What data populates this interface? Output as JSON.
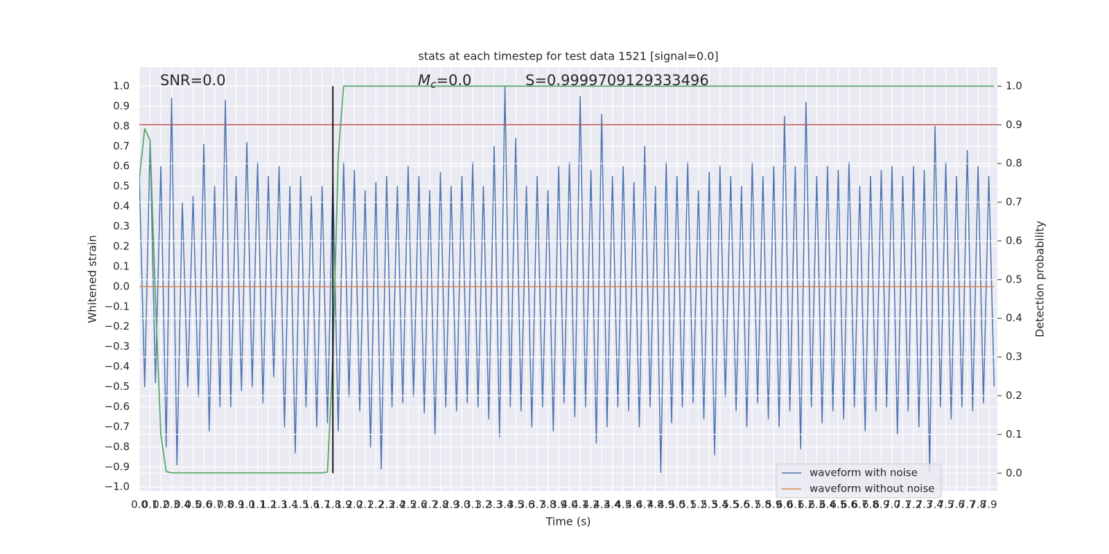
{
  "chart_data": {
    "type": "line",
    "title": "stats at each timestep for test data 1521 [signal=0.0]",
    "xlabel": "Time (s)",
    "ylabel": "Whitened strain",
    "y2label": "Detection probability",
    "annotations": {
      "snr": "SNR=0.0",
      "mc": {
        "symbol": "M",
        "subscript": "c",
        "text": "=0.0"
      },
      "s": "S=0.9999709129333496"
    },
    "grid": true,
    "legend": "lower right",
    "xlim": [
      0,
      7.98
    ],
    "ylim": [
      -1.02,
      1.095
    ],
    "y2lim": [
      -0.046,
      1.049
    ],
    "xticks": [
      {
        "value": 0,
        "label": "0.0"
      },
      0.1,
      0.2,
      0.3,
      0.4,
      0.5,
      0.6,
      0.7,
      0.8,
      0.9,
      {
        "value": 1,
        "label": "1.0"
      },
      1.1,
      1.2,
      1.3,
      1.4,
      1.5,
      1.6,
      1.7,
      1.8,
      1.9,
      {
        "value": 2,
        "label": "2.0"
      },
      2.1,
      2.2,
      2.3,
      2.4,
      2.5,
      2.6,
      2.7,
      2.8,
      2.9,
      {
        "value": 3,
        "label": "3.0"
      },
      3.1,
      3.2,
      3.3,
      3.4,
      3.5,
      3.6,
      3.7,
      3.8,
      3.9,
      {
        "value": 4,
        "label": "4.0"
      },
      4.1,
      4.2,
      4.3,
      4.4,
      4.5,
      4.6,
      4.7,
      4.8,
      4.9,
      {
        "value": 5,
        "label": "5.0"
      },
      5.1,
      5.2,
      5.3,
      5.4,
      5.5,
      5.6,
      5.7,
      5.8,
      5.9,
      {
        "value": 6,
        "label": "6.0"
      },
      6.1,
      6.2,
      6.3,
      6.4,
      6.5,
      6.6,
      6.7,
      6.8,
      6.9,
      {
        "value": 7,
        "label": "7.0"
      },
      7.1,
      7.2,
      7.3,
      7.4,
      7.5,
      7.6,
      7.7,
      7.8,
      7.9
    ],
    "yticks": [
      {
        "value": -1,
        "label": "−1.0"
      },
      {
        "value": -0.9,
        "label": "−0.9"
      },
      {
        "value": -0.8,
        "label": "−0.8"
      },
      {
        "value": -0.7,
        "label": "−0.7"
      },
      {
        "value": -0.6,
        "label": "−0.6"
      },
      {
        "value": -0.5,
        "label": "−0.5"
      },
      {
        "value": -0.4,
        "label": "−0.4"
      },
      {
        "value": -0.3,
        "label": "−0.3"
      },
      {
        "value": -0.2,
        "label": "−0.2"
      },
      {
        "value": -0.1,
        "label": "−0.1"
      },
      {
        "value": 0,
        "label": "0.0"
      },
      0.1,
      0.2,
      0.3,
      0.4,
      0.5,
      0.6,
      0.7,
      0.8,
      0.9,
      {
        "value": 1,
        "label": "1.0"
      }
    ],
    "y2ticks": [
      {
        "value": 0,
        "label": "0.0"
      },
      0.1,
      0.2,
      0.3,
      0.4,
      0.5,
      0.6,
      0.7,
      0.8,
      0.9,
      {
        "value": 1,
        "label": "1.0"
      }
    ],
    "series": [
      {
        "name": "waveform with noise",
        "color": "#4c72b0",
        "x": [
          0,
          0.05,
          0.1,
          0.15,
          0.2,
          0.25,
          0.3,
          0.35,
          0.4,
          0.45,
          0.5,
          0.55,
          0.6,
          0.65,
          0.7,
          0.75,
          0.8,
          0.85,
          0.9,
          0.95,
          1,
          1.05,
          1.1,
          1.15,
          1.2,
          1.25,
          1.3,
          1.35,
          1.4,
          1.45,
          1.5,
          1.55,
          1.6,
          1.65,
          1.7,
          1.75,
          1.8,
          1.85,
          1.9,
          1.95,
          2,
          2.05,
          2.1,
          2.15,
          2.2,
          2.25,
          2.3,
          2.35,
          2.4,
          2.45,
          2.5,
          2.55,
          2.6,
          2.65,
          2.7,
          2.75,
          2.8,
          2.85,
          2.9,
          2.95,
          3,
          3.05,
          3.1,
          3.15,
          3.2,
          3.25,
          3.3,
          3.35,
          3.4,
          3.45,
          3.5,
          3.55,
          3.6,
          3.65,
          3.7,
          3.75,
          3.8,
          3.85,
          3.9,
          3.95,
          4,
          4.05,
          4.1,
          4.15,
          4.2,
          4.25,
          4.3,
          4.35,
          4.4,
          4.45,
          4.5,
          4.55,
          4.6,
          4.65,
          4.7,
          4.75,
          4.8,
          4.85,
          4.9,
          4.95,
          5,
          5.05,
          5.1,
          5.15,
          5.2,
          5.25,
          5.3,
          5.35,
          5.4,
          5.45,
          5.5,
          5.55,
          5.6,
          5.65,
          5.7,
          5.75,
          5.8,
          5.85,
          5.9,
          5.95,
          6,
          6.05,
          6.1,
          6.15,
          6.2,
          6.25,
          6.3,
          6.35,
          6.4,
          6.45,
          6.5,
          6.55,
          6.6,
          6.65,
          6.7,
          6.75,
          6.8,
          6.85,
          6.9,
          6.95,
          7,
          7.05,
          7.1,
          7.15,
          7.2,
          7.25,
          7.3,
          7.35,
          7.4,
          7.45,
          7.5,
          7.55,
          7.6,
          7.65,
          7.7,
          7.75,
          7.8,
          7.85,
          7.9,
          7.95
        ],
        "values": [
          0.55,
          -0.5,
          0.72,
          -0.48,
          0.6,
          -0.8,
          0.94,
          -0.89,
          0.42,
          -0.5,
          0.45,
          -0.55,
          0.71,
          -0.72,
          0.5,
          -0.6,
          0.93,
          -0.6,
          0.55,
          -0.52,
          0.72,
          -0.5,
          0.62,
          -0.58,
          0.55,
          -0.45,
          0.6,
          -0.7,
          0.5,
          -0.83,
          0.55,
          -0.6,
          0.45,
          -0.7,
          0.5,
          -0.68,
          0.54,
          -0.72,
          0.62,
          -0.55,
          0.58,
          -0.62,
          0.48,
          -0.8,
          0.52,
          -0.91,
          0.55,
          -0.6,
          0.5,
          -0.58,
          0.6,
          -0.55,
          0.55,
          -0.63,
          0.48,
          -0.74,
          0.57,
          -0.6,
          0.5,
          -0.62,
          0.55,
          -0.58,
          0.62,
          -0.6,
          0.5,
          -0.66,
          0.7,
          -0.75,
          1.0,
          -0.6,
          0.74,
          -0.62,
          0.5,
          -0.7,
          0.55,
          -0.6,
          0.48,
          -0.72,
          0.6,
          -0.58,
          0.62,
          -0.65,
          0.95,
          -0.6,
          0.58,
          -0.78,
          0.86,
          -0.7,
          0.55,
          -0.6,
          0.6,
          -0.62,
          0.52,
          -0.7,
          0.7,
          -0.6,
          0.5,
          -0.93,
          0.62,
          -0.68,
          0.55,
          -0.6,
          0.62,
          -0.58,
          0.48,
          -0.66,
          0.57,
          -0.84,
          0.6,
          -0.55,
          0.55,
          -0.62,
          0.5,
          -0.7,
          0.62,
          -0.58,
          0.55,
          -0.66,
          0.6,
          -0.7,
          0.85,
          -0.62,
          0.6,
          -0.81,
          0.92,
          -0.6,
          0.55,
          -0.68,
          0.6,
          -0.62,
          0.58,
          -0.66,
          0.62,
          -0.6,
          0.5,
          -0.72,
          0.55,
          -0.62,
          0.58,
          -0.6,
          0.6,
          -0.74,
          0.55,
          -0.62,
          0.6,
          -0.7,
          0.58,
          -0.92,
          0.8,
          -0.6,
          0.62,
          -0.66,
          0.55,
          -0.6,
          0.68,
          -0.62,
          0.6,
          -0.58,
          0.55,
          -0.5
        ]
      },
      {
        "name": "waveform without noise",
        "color": "#dd8452",
        "x": [
          0,
          7.95
        ],
        "values": [
          0,
          0
        ]
      }
    ],
    "probability": {
      "color": "#55a868",
      "axis": "y2",
      "x": [
        0,
        0.05,
        0.1,
        0.15,
        0.2,
        0.25,
        0.3,
        1.7,
        1.75,
        1.8,
        1.85,
        1.9,
        7.95
      ],
      "values": [
        0.76,
        0.89,
        0.86,
        0.45,
        0.1,
        0.004,
        0.001,
        0.001,
        0.003,
        0.3,
        0.82,
        1.0,
        1.0
      ]
    },
    "threshold": {
      "value": 0.9,
      "axis": "y2",
      "color": "#c44e52"
    },
    "marker_line": {
      "x": 1.8,
      "y2range": [
        0,
        1
      ],
      "color": "#000000"
    }
  }
}
